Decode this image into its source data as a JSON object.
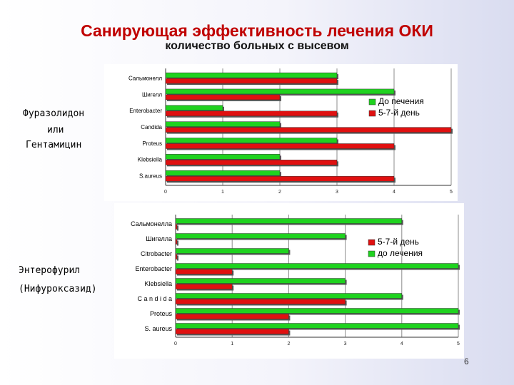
{
  "slide": {
    "title": "Санирующая эффективность лечения ОКИ",
    "subtitle": "количество больных с высевом",
    "page_number": "6"
  },
  "colors": {
    "green": "#1fd21f",
    "red": "#e01010",
    "title": "#c00000"
  },
  "groups": [
    {
      "label_lines": [
        "Фуразолидон",
        "или",
        "Гентамицин"
      ]
    },
    {
      "label_lines": [
        "Энтерофурил",
        "(Нифуроксазид)"
      ]
    }
  ],
  "chart_data": [
    {
      "type": "bar",
      "orientation": "horizontal",
      "categories": [
        "Сальмонелл",
        "Шигелл",
        "Enterobacter",
        "Candida",
        "Proteus",
        "Klebsiella",
        "S.aureus"
      ],
      "series": [
        {
          "name": "До печения",
          "color": "#1fd21f",
          "values": [
            3,
            4,
            1,
            2,
            3,
            2,
            2
          ]
        },
        {
          "name": "5-7-й день",
          "color": "#e01010",
          "values": [
            3,
            2,
            3,
            5,
            4,
            3,
            4
          ]
        }
      ],
      "xlim": [
        0,
        5
      ],
      "xticks": [
        "0",
        "1",
        "2",
        "3",
        "4",
        "5"
      ],
      "grid": true,
      "legend": "right"
    },
    {
      "type": "bar",
      "orientation": "horizontal",
      "categories": [
        "Сальмонелла",
        "Шигелла",
        "Citrobacter",
        "Enterobacter",
        "Klebsiella",
        "C a n d i d a",
        "Proteus",
        "S. aureus"
      ],
      "series": [
        {
          "name": "5-7-й день",
          "color": "#e01010",
          "values": [
            0,
            0,
            0,
            1,
            1,
            3,
            2,
            2
          ]
        },
        {
          "name": "до лечения",
          "color": "#1fd21f",
          "values": [
            4,
            3,
            2,
            5,
            3,
            4,
            5,
            5
          ]
        }
      ],
      "series_order_in_row": [
        "до лечения",
        "5-7-й день"
      ],
      "xlim": [
        0,
        5
      ],
      "xticks": [
        "0",
        "1",
        "2",
        "3",
        "4",
        "5"
      ],
      "grid": true,
      "legend": "right"
    }
  ]
}
